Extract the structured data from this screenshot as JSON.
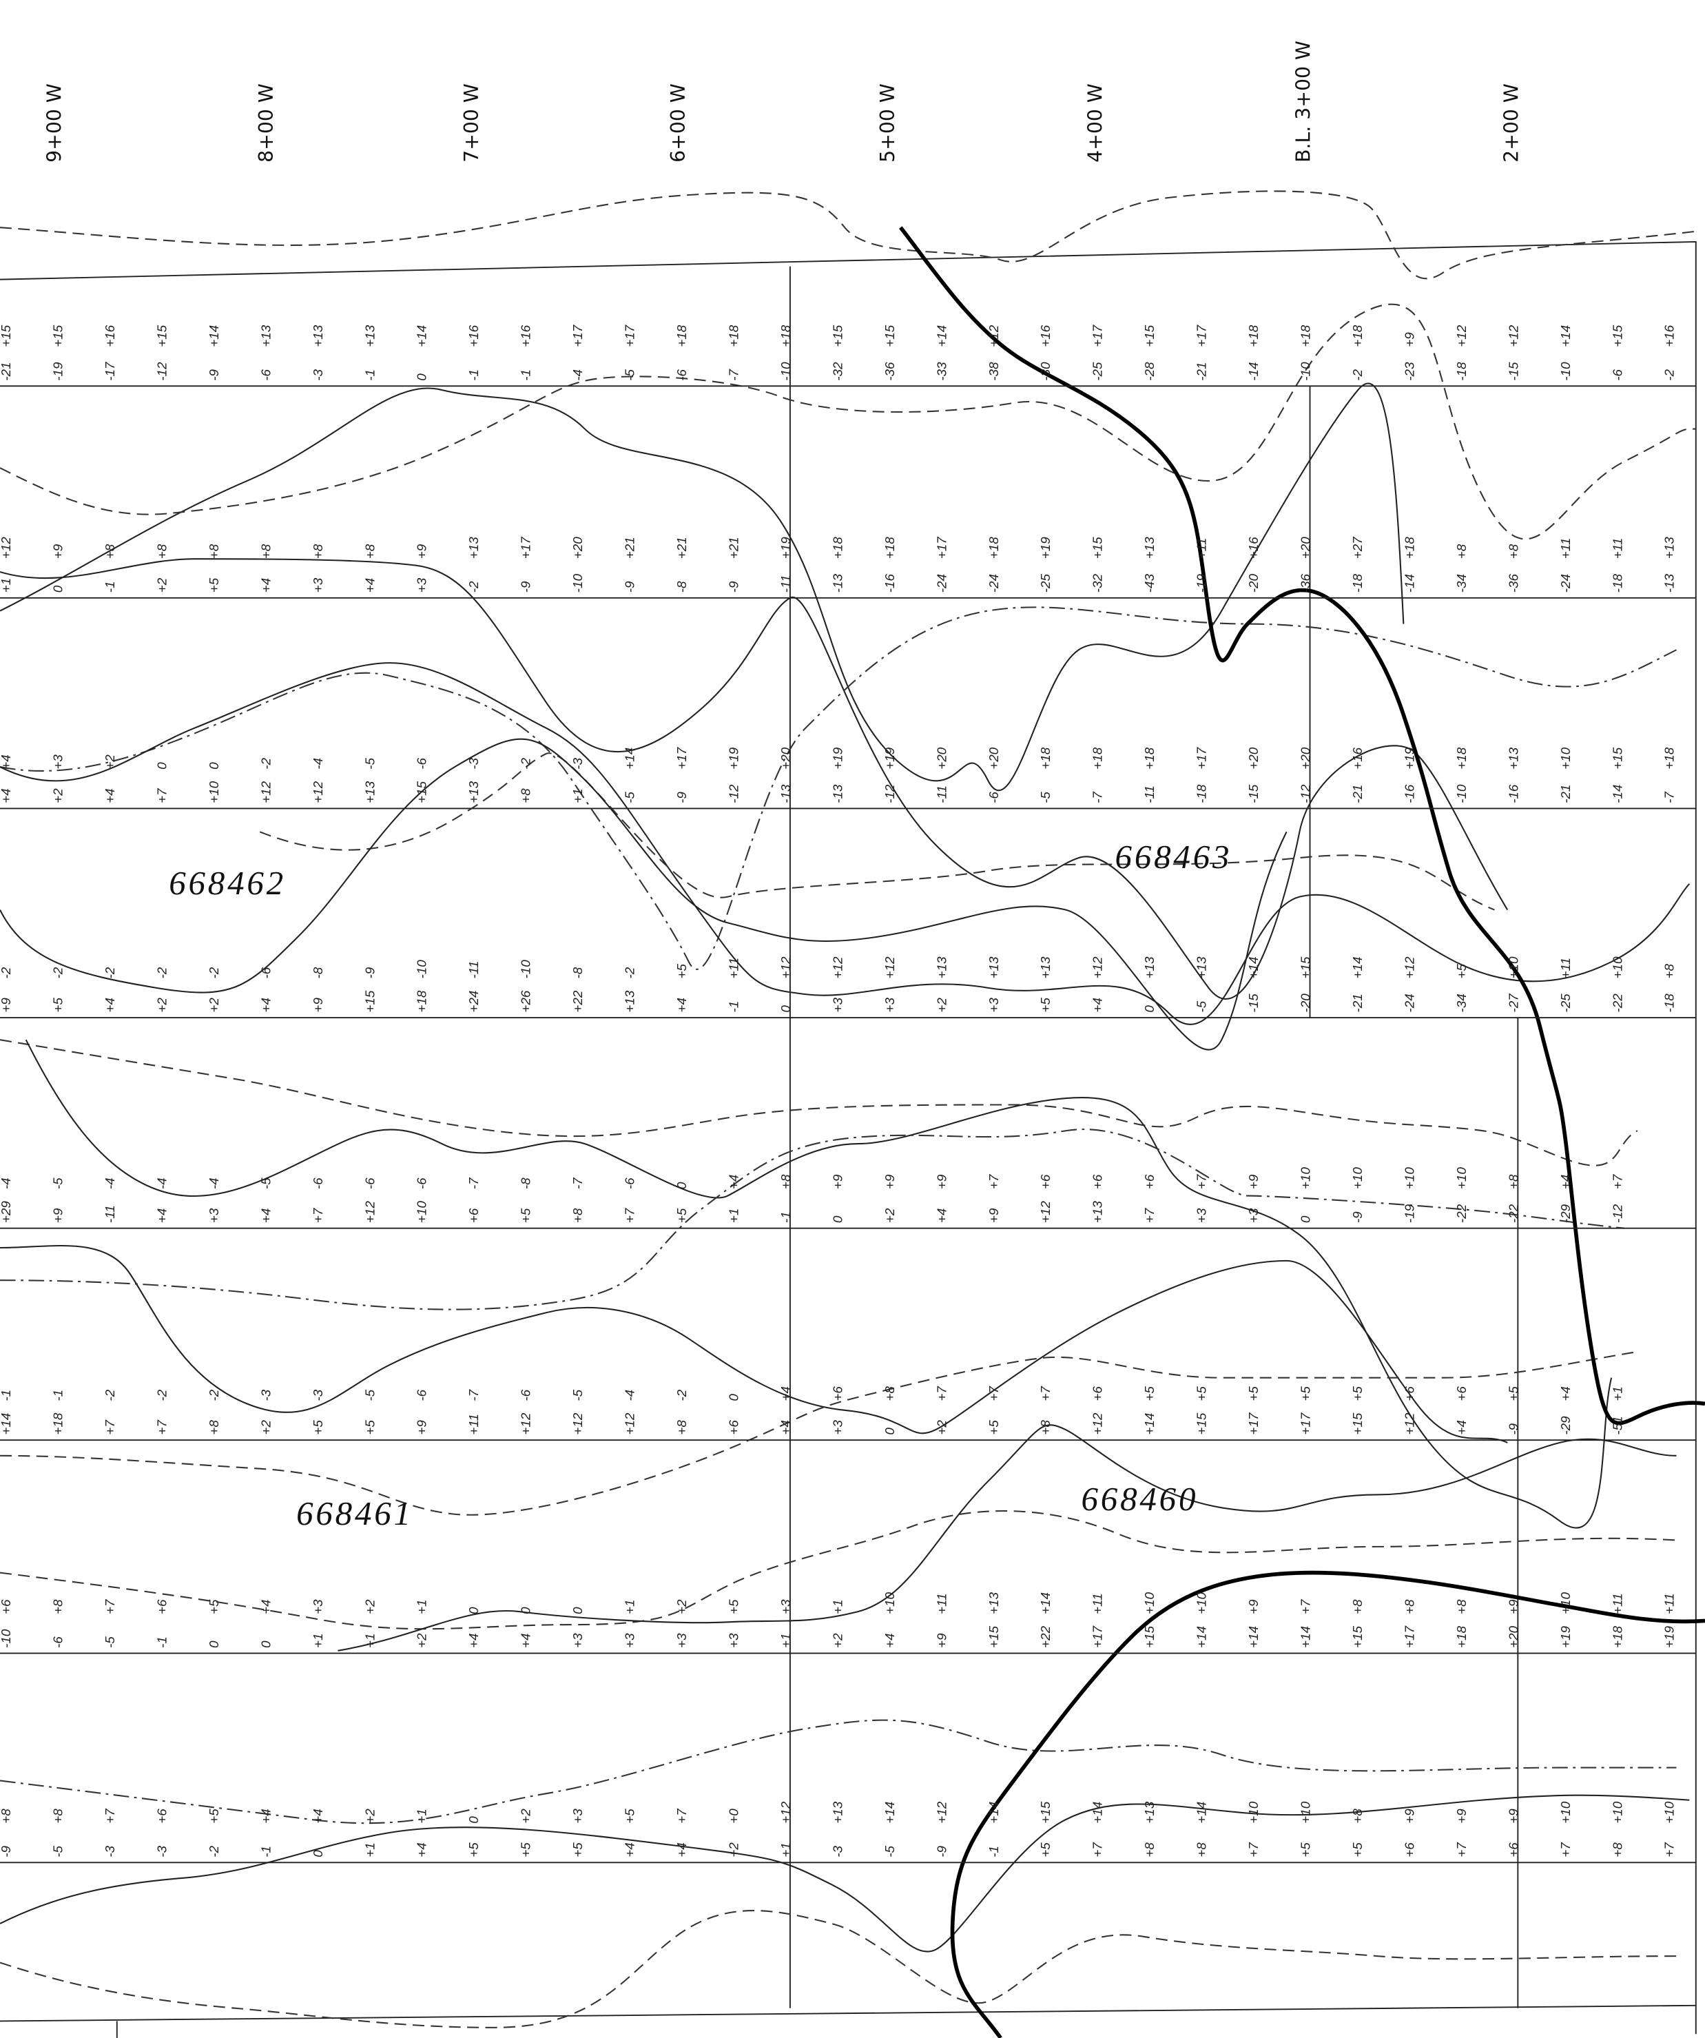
{
  "stations": [
    "9+00 W",
    "8+00 W",
    "7+00 W",
    "6+00 W",
    "5+00 W",
    "4+00 W",
    "B.L. 3+00 W",
    "2+00 W"
  ],
  "claims": [
    "668462",
    "668463",
    "668461",
    "668460"
  ],
  "lines": [
    {
      "readings": [
        [
          "-21",
          "+15"
        ],
        [
          "-19",
          "+15"
        ],
        [
          "-17",
          "+16"
        ],
        [
          "-12",
          "+15"
        ],
        [
          "-9",
          "+14"
        ],
        [
          "-6",
          "+13"
        ],
        [
          "-3",
          "+13"
        ],
        [
          "-1",
          "+13"
        ],
        [
          "0",
          "+14"
        ],
        [
          "-1",
          "+16"
        ],
        [
          "-1",
          "+16"
        ],
        [
          "-4",
          "+17"
        ],
        [
          "-5",
          "+17"
        ],
        [
          "-6",
          "+18"
        ],
        [
          "-7",
          "+18"
        ],
        [
          "-10",
          "+18"
        ],
        [
          "-32",
          "+15"
        ],
        [
          "-36",
          "+15"
        ],
        [
          "-33",
          "+14"
        ],
        [
          "-38",
          "+12"
        ],
        [
          "-30",
          "+16"
        ],
        [
          "-25",
          "+17"
        ],
        [
          "-28",
          "+15"
        ],
        [
          "-21",
          "+17"
        ],
        [
          "-14",
          "+18"
        ],
        [
          "-10",
          "+18"
        ],
        [
          "-2",
          "+18"
        ],
        [
          "-23",
          "+9"
        ],
        [
          "-18",
          "+12"
        ],
        [
          "-15",
          "+12"
        ],
        [
          "-10",
          "+14"
        ],
        [
          "-6",
          "+15"
        ],
        [
          "-2",
          "+16"
        ]
      ]
    },
    {
      "readings": [
        [
          "+1",
          "+12"
        ],
        [
          "0",
          "+9"
        ],
        [
          "-1",
          "+8"
        ],
        [
          "+2",
          "+8"
        ],
        [
          "+5",
          "+8"
        ],
        [
          "+4",
          "+8"
        ],
        [
          "+3",
          "+8"
        ],
        [
          "+4",
          "+8"
        ],
        [
          "+3",
          "+9"
        ],
        [
          "-2",
          "+13"
        ],
        [
          "-9",
          "+17"
        ],
        [
          "-10",
          "+20"
        ],
        [
          "-9",
          "+21"
        ],
        [
          "-8",
          "+21"
        ],
        [
          "-9",
          "+21"
        ],
        [
          "-11",
          "+19"
        ],
        [
          "-13",
          "+18"
        ],
        [
          "-16",
          "+18"
        ],
        [
          "-24",
          "+17"
        ],
        [
          "-24",
          "+18"
        ],
        [
          "-25",
          "+19"
        ],
        [
          "-32",
          "+15"
        ],
        [
          "-43",
          "+13"
        ],
        [
          "-19",
          "+11"
        ],
        [
          "-20",
          "+16"
        ],
        [
          "-36",
          "+20"
        ],
        [
          "-18",
          "+27"
        ],
        [
          "-14",
          "+18"
        ],
        [
          "-34",
          "+8"
        ],
        [
          "-36",
          "+8"
        ],
        [
          "-24",
          "+11"
        ],
        [
          "-18",
          "+11"
        ],
        [
          "-13",
          "+13"
        ]
      ]
    },
    {
      "readings": [
        [
          "+4",
          "+4"
        ],
        [
          "+2",
          "+3"
        ],
        [
          "+4",
          "+2"
        ],
        [
          "+7",
          "0"
        ],
        [
          "+10",
          "0"
        ],
        [
          "+12",
          "-2"
        ],
        [
          "+12",
          "-4"
        ],
        [
          "+13",
          "-5"
        ],
        [
          "+15",
          "-6"
        ],
        [
          "+13",
          "-3"
        ],
        [
          "+8",
          "-2"
        ],
        [
          "+1",
          "-3"
        ],
        [
          "-5",
          "+14"
        ],
        [
          "-9",
          "+17"
        ],
        [
          "-12",
          "+19"
        ],
        [
          "-13",
          "+20"
        ],
        [
          "-13",
          "+19"
        ],
        [
          "-12",
          "+19"
        ],
        [
          "-11",
          "+20"
        ],
        [
          "-6",
          "+20"
        ],
        [
          "-5",
          "+18"
        ],
        [
          "-7",
          "+18"
        ],
        [
          "-11",
          "+18"
        ],
        [
          "-18",
          "+17"
        ],
        [
          "-15",
          "+20"
        ],
        [
          "-12",
          "+20"
        ],
        [
          "-21",
          "+16"
        ],
        [
          "-16",
          "+19"
        ],
        [
          "-10",
          "+18"
        ],
        [
          "-16",
          "+13"
        ],
        [
          "-21",
          "+10"
        ],
        [
          "-14",
          "+15"
        ],
        [
          "-7",
          "+18"
        ]
      ]
    },
    {
      "readings": [
        [
          "+9",
          "-2"
        ],
        [
          "+5",
          "-2"
        ],
        [
          "+4",
          "-2"
        ],
        [
          "+2",
          "-2"
        ],
        [
          "+2",
          "-2"
        ],
        [
          "+4",
          "-6"
        ],
        [
          "+9",
          "-8"
        ],
        [
          "+15",
          "-9"
        ],
        [
          "+18",
          "-10"
        ],
        [
          "+24",
          "-11"
        ],
        [
          "+26",
          "-10"
        ],
        [
          "+22",
          "-8"
        ],
        [
          "+13",
          "-2"
        ],
        [
          "+4",
          "+5"
        ],
        [
          "-1",
          "+11"
        ],
        [
          "0",
          "+12"
        ],
        [
          "+3",
          "+12"
        ],
        [
          "+3",
          "+12"
        ],
        [
          "+2",
          "+13"
        ],
        [
          "+3",
          "+13"
        ],
        [
          "+5",
          "+13"
        ],
        [
          "+4",
          "+12"
        ],
        [
          "0",
          "+13"
        ],
        [
          "-5",
          "+13"
        ],
        [
          "-15",
          "+14"
        ],
        [
          "-20",
          "+15"
        ],
        [
          "-21",
          "+14"
        ],
        [
          "-24",
          "+12"
        ],
        [
          "-34",
          "+5"
        ],
        [
          "-27",
          "+10"
        ],
        [
          "-25",
          "+11"
        ],
        [
          "-22",
          "+10"
        ],
        [
          "-18",
          "+8"
        ]
      ]
    },
    {
      "readings": [
        [
          "+29",
          "-4"
        ],
        [
          "+9",
          "-5"
        ],
        [
          "-11",
          "-4"
        ],
        [
          "+4",
          "-4"
        ],
        [
          "+3",
          "-4"
        ],
        [
          "+4",
          "-5"
        ],
        [
          "+7",
          "-6"
        ],
        [
          "+12",
          "-6"
        ],
        [
          "+10",
          "-6"
        ],
        [
          "+6",
          "-7"
        ],
        [
          "+5",
          "-8"
        ],
        [
          "+8",
          "-7"
        ],
        [
          "+7",
          "-6"
        ],
        [
          "+5",
          "0"
        ],
        [
          "+1",
          "+4"
        ],
        [
          "-1",
          "+8"
        ],
        [
          "0",
          "+9"
        ],
        [
          "+2",
          "+9"
        ],
        [
          "+4",
          "+9"
        ],
        [
          "+9",
          "+7"
        ],
        [
          "+12",
          "+6"
        ],
        [
          "+13",
          "+6"
        ],
        [
          "+7",
          "+6"
        ],
        [
          "+3",
          "+7"
        ],
        [
          "+3",
          "+9"
        ],
        [
          "0",
          "+10"
        ],
        [
          "-9",
          "+10"
        ],
        [
          "-19",
          "+10"
        ],
        [
          "-22",
          "+10"
        ],
        [
          "-22",
          "+8"
        ],
        [
          "-29",
          "+4"
        ],
        [
          "-12",
          "+7"
        ]
      ]
    },
    {
      "readings": [
        [
          "+14",
          "-1"
        ],
        [
          "+18",
          "-1"
        ],
        [
          "+7",
          "-2"
        ],
        [
          "+7",
          "-2"
        ],
        [
          "+8",
          "-2"
        ],
        [
          "+2",
          "-3"
        ],
        [
          "+5",
          "-3"
        ],
        [
          "+5",
          "-5"
        ],
        [
          "+9",
          "-6"
        ],
        [
          "+11",
          "-7"
        ],
        [
          "+12",
          "-6"
        ],
        [
          "+12",
          "-5"
        ],
        [
          "+12",
          "-4"
        ],
        [
          "+8",
          "-2"
        ],
        [
          "+6",
          "0"
        ],
        [
          "+4",
          "+4"
        ],
        [
          "+3",
          "+6"
        ],
        [
          "0",
          "+8"
        ],
        [
          "+2",
          "+7"
        ],
        [
          "+5",
          "+7"
        ],
        [
          "+8",
          "+7"
        ],
        [
          "+12",
          "+6"
        ],
        [
          "+14",
          "+5"
        ],
        [
          "+15",
          "+5"
        ],
        [
          "+17",
          "+5"
        ],
        [
          "+17",
          "+5"
        ],
        [
          "+15",
          "+5"
        ],
        [
          "+12",
          "+6"
        ],
        [
          "+4",
          "+6"
        ],
        [
          "-9",
          "+5"
        ],
        [
          "-29",
          "+4"
        ],
        [
          "-51",
          "+1"
        ]
      ]
    },
    {
      "readings": [
        [
          "-10",
          "+6"
        ],
        [
          "-6",
          "+8"
        ],
        [
          "-5",
          "+7"
        ],
        [
          "-1",
          "+6"
        ],
        [
          "0",
          "+5"
        ],
        [
          "0",
          "+4"
        ],
        [
          "+1",
          "+3"
        ],
        [
          "+1",
          "+2"
        ],
        [
          "+2",
          "+1"
        ],
        [
          "+4",
          "0"
        ],
        [
          "+4",
          "0"
        ],
        [
          "+3",
          "0"
        ],
        [
          "+3",
          "+1"
        ],
        [
          "+3",
          "+2"
        ],
        [
          "+3",
          "+5"
        ],
        [
          "+1",
          "+3"
        ],
        [
          "+2",
          "+1"
        ],
        [
          "+4",
          "+10"
        ],
        [
          "+9",
          "+11"
        ],
        [
          "+15",
          "+13"
        ],
        [
          "+22",
          "+14"
        ],
        [
          "+17",
          "+11"
        ],
        [
          "+15",
          "+10"
        ],
        [
          "+14",
          "+10"
        ],
        [
          "+14",
          "+9"
        ],
        [
          "+14",
          "+7"
        ],
        [
          "+15",
          "+8"
        ],
        [
          "+17",
          "+8"
        ],
        [
          "+18",
          "+8"
        ],
        [
          "+20",
          "+9"
        ],
        [
          "+19",
          "+10"
        ],
        [
          "+18",
          "+11"
        ],
        [
          "+19",
          "+11"
        ]
      ]
    },
    {
      "readings": [
        [
          "-9",
          "+8"
        ],
        [
          "-5",
          "+8"
        ],
        [
          "-3",
          "+7"
        ],
        [
          "-3",
          "+6"
        ],
        [
          "-2",
          "+5"
        ],
        [
          "-1",
          "+4"
        ],
        [
          "0",
          "+4"
        ],
        [
          "+1",
          "+2"
        ],
        [
          "+4",
          "+1"
        ],
        [
          "+5",
          "0"
        ],
        [
          "+5",
          "+2"
        ],
        [
          "+5",
          "+3"
        ],
        [
          "+4",
          "+5"
        ],
        [
          "+4",
          "+7"
        ],
        [
          "+2",
          "+0"
        ],
        [
          "+1",
          "+12"
        ],
        [
          "-3",
          "+13"
        ],
        [
          "-5",
          "+14"
        ],
        [
          "-9",
          "+12"
        ],
        [
          "-1",
          "+14"
        ],
        [
          "+5",
          "+15"
        ],
        [
          "+7",
          "+14"
        ],
        [
          "+8",
          "+13"
        ],
        [
          "+8",
          "+14"
        ],
        [
          "+7",
          "+10"
        ],
        [
          "+5",
          "+10"
        ],
        [
          "+5",
          "+8"
        ],
        [
          "+6",
          "+9"
        ],
        [
          "+7",
          "+9"
        ],
        [
          "+6",
          "+9"
        ],
        [
          "+7",
          "+10"
        ],
        [
          "+8",
          "+10"
        ],
        [
          "+7",
          "+10"
        ]
      ]
    }
  ]
}
